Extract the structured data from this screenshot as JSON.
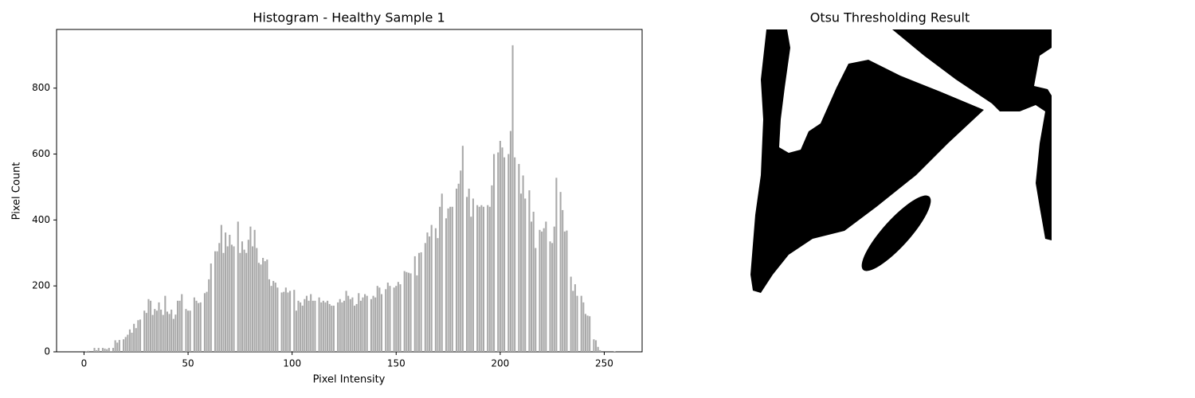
{
  "chart_data": [
    {
      "type": "bar",
      "title": "Histogram - Healthy Sample 1",
      "xlabel": "Pixel Intensity",
      "ylabel": "Pixel Count",
      "color": "#a9a9a9",
      "x": [
        0,
        1,
        2,
        3,
        4,
        5,
        6,
        7,
        8,
        9,
        10,
        11,
        12,
        13,
        14,
        15,
        16,
        17,
        18,
        19,
        20,
        21,
        22,
        23,
        24,
        25,
        26,
        27,
        28,
        29,
        30,
        31,
        32,
        33,
        34,
        35,
        36,
        37,
        38,
        39,
        40,
        41,
        42,
        43,
        44,
        45,
        46,
        47,
        48,
        49,
        50,
        51,
        52,
        53,
        54,
        55,
        56,
        57,
        58,
        59,
        60,
        61,
        62,
        63,
        64,
        65,
        66,
        67,
        68,
        69,
        70,
        71,
        72,
        73,
        74,
        75,
        76,
        77,
        78,
        79,
        80,
        81,
        82,
        83,
        84,
        85,
        86,
        87,
        88,
        89,
        90,
        91,
        92,
        93,
        94,
        95,
        96,
        97,
        98,
        99,
        100,
        101,
        102,
        103,
        104,
        105,
        106,
        107,
        108,
        109,
        110,
        111,
        112,
        113,
        114,
        115,
        116,
        117,
        118,
        119,
        120,
        121,
        122,
        123,
        124,
        125,
        126,
        127,
        128,
        129,
        130,
        131,
        132,
        133,
        134,
        135,
        136,
        137,
        138,
        139,
        140,
        141,
        142,
        143,
        144,
        145,
        146,
        147,
        148,
        149,
        150,
        151,
        152,
        153,
        154,
        155,
        156,
        157,
        158,
        159,
        160,
        161,
        162,
        163,
        164,
        165,
        166,
        167,
        168,
        169,
        170,
        171,
        172,
        173,
        174,
        175,
        176,
        177,
        178,
        179,
        180,
        181,
        182,
        183,
        184,
        185,
        186,
        187,
        188,
        189,
        190,
        191,
        192,
        193,
        194,
        195,
        196,
        197,
        198,
        199,
        200,
        201,
        202,
        203,
        204,
        205,
        206,
        207,
        208,
        209,
        210,
        211,
        212,
        213,
        214,
        215,
        216,
        217,
        218,
        219,
        220,
        221,
        222,
        223,
        224,
        225,
        226,
        227,
        228,
        229,
        230,
        231,
        232,
        233,
        234,
        235,
        236,
        237,
        238,
        239,
        240,
        241,
        242,
        243,
        244,
        245,
        246,
        247,
        248,
        249,
        250,
        251,
        252,
        253,
        254,
        255
      ],
      "values": [
        0,
        2,
        3,
        0,
        0,
        12,
        5,
        12,
        0,
        12,
        10,
        8,
        12,
        2,
        12,
        35,
        28,
        36,
        0,
        38,
        45,
        52,
        68,
        58,
        85,
        72,
        96,
        98,
        0,
        125,
        118,
        160,
        155,
        112,
        130,
        125,
        150,
        128,
        112,
        170,
        122,
        115,
        128,
        100,
        113,
        155,
        155,
        175,
        0,
        130,
        125,
        125,
        0,
        165,
        155,
        148,
        150,
        0,
        178,
        182,
        220,
        268,
        0,
        305,
        305,
        330,
        385,
        300,
        362,
        320,
        355,
        325,
        320,
        0,
        395,
        300,
        335,
        310,
        300,
        340,
        380,
        320,
        370,
        315,
        270,
        265,
        285,
        275,
        280,
        220,
        200,
        215,
        210,
        195,
        0,
        180,
        182,
        195,
        180,
        185,
        0,
        188,
        125,
        155,
        150,
        140,
        160,
        170,
        155,
        175,
        155,
        155,
        0,
        165,
        150,
        155,
        150,
        155,
        145,
        140,
        140,
        0,
        150,
        160,
        150,
        155,
        185,
        170,
        160,
        165,
        140,
        145,
        178,
        155,
        165,
        175,
        170,
        0,
        160,
        170,
        165,
        200,
        195,
        175,
        0,
        190,
        210,
        200,
        0,
        195,
        200,
        212,
        205,
        0,
        245,
        242,
        240,
        238,
        0,
        290,
        232,
        300,
        302,
        0,
        330,
        362,
        350,
        385,
        0,
        375,
        345,
        440,
        480,
        0,
        405,
        435,
        440,
        440,
        0,
        495,
        510,
        550,
        625,
        0,
        470,
        495,
        410,
        465,
        0,
        445,
        440,
        445,
        440,
        0,
        445,
        440,
        505,
        600,
        0,
        605,
        640,
        620,
        590,
        0,
        600,
        670,
        930,
        590,
        0,
        570,
        480,
        535,
        465,
        0,
        490,
        395,
        425,
        315,
        0,
        370,
        365,
        375,
        395,
        0,
        335,
        330,
        380,
        528,
        0,
        485,
        430,
        365,
        368,
        0,
        228,
        185,
        205,
        170,
        0,
        170,
        150,
        115,
        110,
        108,
        0,
        38,
        35,
        15,
        5,
        0,
        0,
        0,
        0,
        0,
        0,
        1
      ],
      "xlim": [
        -13.2,
        268.2
      ],
      "xticks": [
        0,
        50,
        100,
        150,
        200,
        250
      ],
      "ylim": [
        0,
        978
      ],
      "yticks": [
        0,
        200,
        400,
        600,
        800
      ]
    },
    {
      "type": "image",
      "title": "Otsu Thresholding Result"
    }
  ]
}
